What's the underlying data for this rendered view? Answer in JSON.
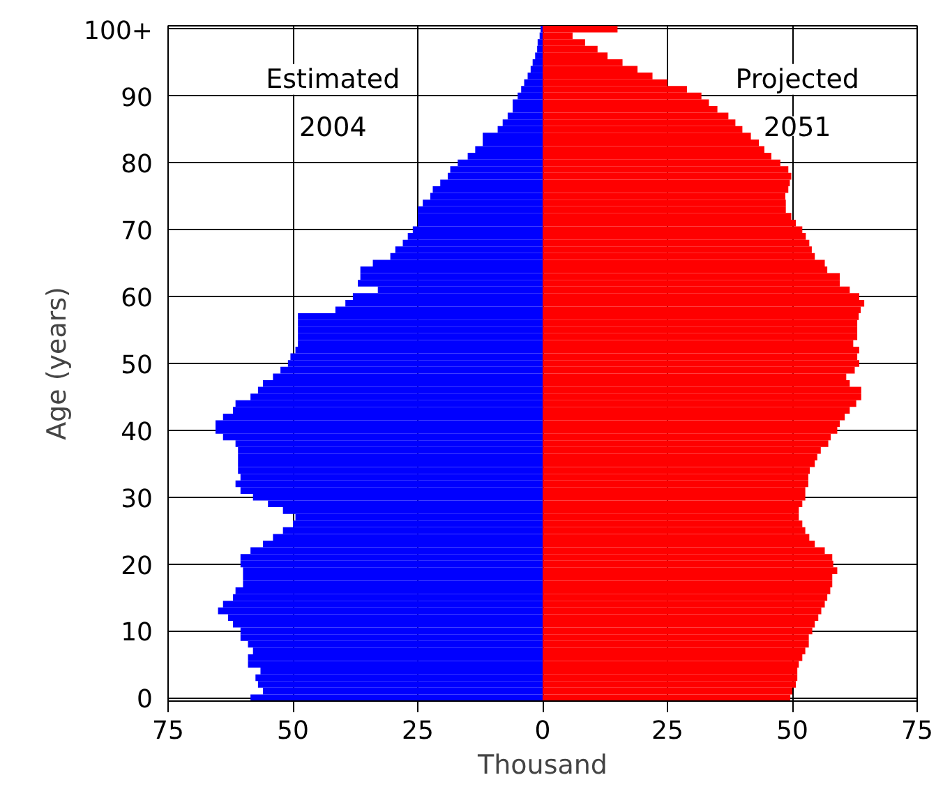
{
  "chart_data": {
    "type": "bar",
    "orientation": "horizontal",
    "stacked": true,
    "xlabel": "Thousand",
    "ylabel": "Age (years)",
    "categories": [
      "100+",
      null,
      null,
      null,
      null,
      null,
      null,
      null,
      null,
      null,
      "90",
      null,
      null,
      null,
      null,
      null,
      null,
      null,
      null,
      null,
      "80",
      null,
      null,
      null,
      null,
      null,
      null,
      null,
      null,
      null,
      "70",
      null,
      null,
      null,
      null,
      null,
      null,
      null,
      null,
      null,
      "60",
      null,
      null,
      null,
      null,
      null,
      null,
      null,
      null,
      null,
      "50",
      null,
      null,
      null,
      null,
      null,
      null,
      null,
      null,
      null,
      "40",
      null,
      null,
      null,
      null,
      null,
      null,
      null,
      null,
      null,
      "30",
      null,
      null,
      null,
      null,
      null,
      null,
      null,
      null,
      null,
      "20",
      null,
      null,
      null,
      null,
      null,
      null,
      null,
      null,
      null,
      "10",
      null,
      null,
      null,
      null,
      null,
      null,
      null,
      null,
      null,
      "0"
    ],
    "series": [
      {
        "color": "#0000ff",
        "values": [
          -0.4,
          -0.6,
          -1,
          -1.1,
          -1.5,
          -2,
          -2.4,
          -3,
          -3.7,
          -4.3,
          -5,
          -6,
          -6,
          -7,
          -8,
          -9,
          -12,
          -12,
          -13.5,
          -15,
          -17,
          -18.5,
          -19,
          -20.5,
          -22,
          -22.5,
          -24,
          -25,
          -25,
          -25,
          -26,
          -27,
          -28,
          -29.5,
          -30.5,
          -34,
          -36.5,
          -36.5,
          -37,
          -33,
          -38,
          -39.5,
          -41.5,
          -49,
          -49,
          -49,
          -49,
          -49,
          -49.5,
          -50.5,
          -51,
          -52.5,
          -54,
          -56,
          -57,
          -58.5,
          -61.5,
          -62,
          -64,
          -65.5,
          -65.5,
          -64,
          -61.5,
          -61,
          -61,
          -61,
          -61,
          -60.5,
          -61.5,
          -60.5,
          -58,
          -55,
          -52,
          -49.5,
          -50,
          -52,
          -54,
          -56,
          -58.5,
          -60.5,
          -60.5,
          -60,
          -60,
          -60,
          -61.5,
          -62,
          -64,
          -65,
          -63,
          -62,
          -60.5,
          -60.5,
          -59,
          -58,
          -59,
          -59,
          -56.5,
          -57.5,
          -57,
          -56,
          -58.5
        ]
      },
      {
        "color": "#ff0000",
        "values": [
          15,
          6,
          8.5,
          11,
          13,
          16,
          19,
          22,
          25,
          28.9,
          31.8,
          33.3,
          35,
          37.2,
          38.6,
          40,
          41.7,
          43.3,
          44.4,
          45.8,
          47.6,
          49.2,
          49.8,
          49.5,
          49.2,
          48.6,
          48.7,
          48.7,
          49.8,
          50.7,
          52,
          52.7,
          53.4,
          53.9,
          54.5,
          56.5,
          57,
          59.5,
          59.5,
          61.5,
          63.4,
          64.4,
          63.7,
          63.3,
          63,
          63,
          63,
          62.2,
          63.4,
          63,
          63.4,
          62.5,
          60.8,
          61.5,
          63.8,
          63.8,
          62.8,
          61.5,
          60.5,
          59.5,
          59,
          57.7,
          57.2,
          55.7,
          55,
          54.5,
          53.5,
          53.2,
          53.2,
          52.6,
          52.6,
          52,
          51.3,
          51.3,
          52,
          52.6,
          53.4,
          54.5,
          56.5,
          58,
          58.2,
          59,
          58,
          58,
          57.6,
          57,
          56.5,
          55.8,
          55.2,
          54.5,
          54,
          53.3,
          53.3,
          52.6,
          52,
          51.3,
          51,
          51,
          50.7,
          50,
          49.6
        ]
      }
    ],
    "xlim": [
      -75,
      75
    ],
    "xticks": [
      {
        "value": -75,
        "label": "75"
      },
      {
        "value": -50,
        "label": "50"
      },
      {
        "value": -25,
        "label": "25"
      },
      0,
      25,
      50,
      75
    ],
    "grid": true,
    "annotations": [
      "Estimated\n2004",
      "Projected\n2051"
    ]
  }
}
